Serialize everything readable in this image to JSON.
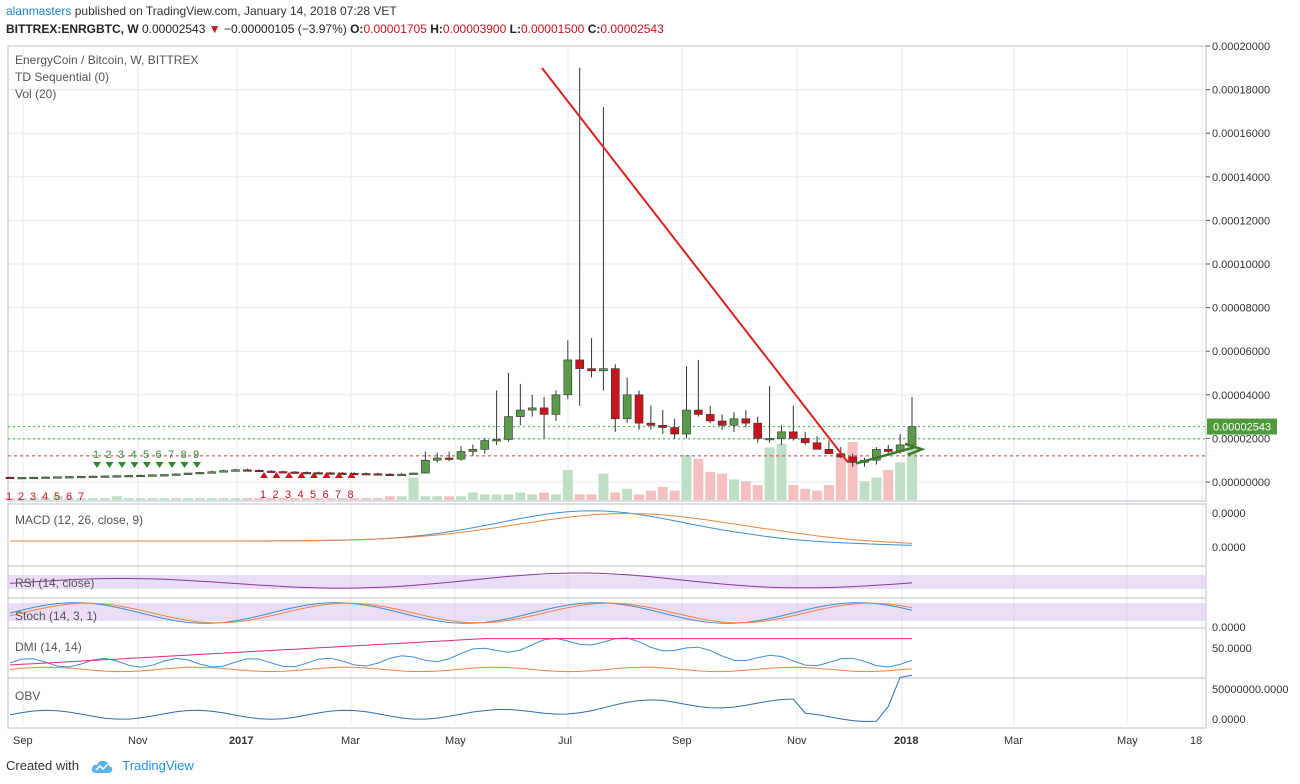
{
  "header": {
    "user": "alanmasters",
    "published": "published on TradingView.com, January 14, 2018 07:28 VET",
    "symbol": "BITTREX:ENRGBTC, W",
    "last": "0.00002543",
    "change": "−0.00000105 (−3.97%)",
    "o_label": "O:",
    "o": "0.00001705",
    "h_label": "H:",
    "h": "0.00003900",
    "l_label": "L:",
    "l": "0.00001500",
    "c_label": "C:",
    "c": "0.00002543"
  },
  "legend": {
    "title": "EnergyCoin / Bitcoin, W, BITTREX",
    "td": "TD Sequential (0)",
    "vol": "Vol (20)"
  },
  "footer": {
    "created": "Created with",
    "brand": "TradingView"
  },
  "colors": {
    "up": "#5a9a4a",
    "down": "#c8141c",
    "trend": "#e0201e",
    "green_arrow": "#3d7a2a",
    "macd": "#3d8fd6",
    "signal": "#f0843c",
    "rsi": "#8a3a9a",
    "band": "#dcc6f0",
    "dmi_plus": "#3d8fd6",
    "dmi_minus": "#f0843c",
    "adx": "#e0287a",
    "obv": "#2a6fb0"
  },
  "chart_data": {
    "type": "candlestick",
    "title": "EnergyCoin / Bitcoin, W, BITTREX",
    "price_axis": {
      "ylim": [
        0,
        0.0002
      ],
      "ticks": [
        "0.00020000",
        "0.00018000",
        "0.00016000",
        "0.00014000",
        "0.00012000",
        "0.00010000",
        "0.00008000",
        "0.00006000",
        "0.00004000",
        "0.00002000",
        "0.00000000"
      ],
      "last_label": "0.00002543"
    },
    "x_axis": {
      "ticks": [
        "Sep",
        "Nov",
        "2017",
        "Mar",
        "May",
        "Jul",
        "Sep",
        "Nov",
        "2018",
        "Mar",
        "May",
        "18"
      ]
    },
    "candles": [
      [
        2.2e-06,
        2.4e-06,
        1.8e-06,
        2e-06
      ],
      [
        2e-06,
        2.3e-06,
        1.8e-06,
        2.1e-06
      ],
      [
        2.1e-06,
        2.4e-06,
        1.9e-06,
        2.2e-06
      ],
      [
        2.2e-06,
        2.5e-06,
        2e-06,
        2.3e-06
      ],
      [
        2.3e-06,
        2.6e-06,
        2.1e-06,
        2.4e-06
      ],
      [
        2.4e-06,
        2.7e-06,
        2.2e-06,
        2.5e-06
      ],
      [
        2.5e-06,
        2.8e-06,
        2.3e-06,
        2.6e-06
      ],
      [
        2.6e-06,
        2.9e-06,
        2.4e-06,
        2.7e-06
      ],
      [
        2.7e-06,
        3e-06,
        2.5e-06,
        2.8e-06
      ],
      [
        2.8e-06,
        3.1e-06,
        2.6e-06,
        2.9e-06
      ],
      [
        2.9e-06,
        3.2e-06,
        2.7e-06,
        3e-06
      ],
      [
        3e-06,
        3.4e-06,
        2.8e-06,
        3.1e-06
      ],
      [
        3.1e-06,
        3.5e-06,
        2.9e-06,
        3.3e-06
      ],
      [
        3.3e-06,
        3.6e-06,
        3.1e-06,
        3.4e-06
      ],
      [
        3.4e-06,
        4e-06,
        3.2e-06,
        3.7e-06
      ],
      [
        3.7e-06,
        4.3e-06,
        3.3e-06,
        4.1e-06
      ],
      [
        4.1e-06,
        4.6e-06,
        3.7e-06,
        4.4e-06
      ],
      [
        4.4e-06,
        5.2e-06,
        4e-06,
        4.7e-06
      ],
      [
        4.7e-06,
        5.6e-06,
        4.4e-06,
        5.2e-06
      ],
      [
        5.2e-06,
        6e-06,
        4.8e-06,
        5.6e-06
      ],
      [
        5.6e-06,
        6.2e-06,
        5e-06,
        5.4e-06
      ],
      [
        5.4e-06,
        5.8e-06,
        4.8e-06,
        5e-06
      ],
      [
        5e-06,
        5.4e-06,
        4.5e-06,
        4.8e-06
      ],
      [
        4.8e-06,
        5.2e-06,
        4.3e-06,
        4.6e-06
      ],
      [
        4.6e-06,
        5e-06,
        4.1e-06,
        4.4e-06
      ],
      [
        4.4e-06,
        4.9e-06,
        4e-06,
        4.3e-06
      ],
      [
        4.3e-06,
        4.8e-06,
        3.9e-06,
        4.2e-06
      ],
      [
        4.2e-06,
        4.7e-06,
        3.8e-06,
        4.1e-06
      ],
      [
        4.1e-06,
        4.6e-06,
        3.7e-06,
        4e-06
      ],
      [
        4e-06,
        4.5e-06,
        3.6e-06,
        3.9e-06
      ],
      [
        3.9e-06,
        4.4e-06,
        3.5e-06,
        3.8e-06
      ],
      [
        3.8e-06,
        4.2e-06,
        3.4e-06,
        3.6e-06
      ],
      [
        3.6e-06,
        4e-06,
        3.4e-06,
        3.5e-06
      ],
      [
        3.5e-06,
        4e-06,
        3.3e-06,
        3.6e-06
      ],
      [
        3.6e-06,
        4.3e-06,
        3.4e-06,
        4.1e-06
      ],
      [
        4.1e-06,
        1.4e-05,
        3.9e-06,
        1e-05
      ],
      [
        1e-05,
        1.35e-05,
        9e-06,
        1.1e-05
      ],
      [
        1.1e-05,
        1.4e-05,
        9.5e-06,
        1.05e-05
      ],
      [
        1.05e-05,
        1.65e-05,
        9.8e-06,
        1.4e-05
      ],
      [
        1.4e-05,
        1.72e-05,
        1.2e-05,
        1.5e-05
      ],
      [
        1.5e-05,
        2e-05,
        1.3e-05,
        1.9e-05
      ],
      [
        1.9e-05,
        4.2e-05,
        1.7e-05,
        1.95e-05
      ],
      [
        1.95e-05,
        5e-05,
        1.85e-05,
        3e-05
      ],
      [
        3e-05,
        4.5e-05,
        2.6e-05,
        3.3e-05
      ],
      [
        3.3e-05,
        4e-05,
        3e-05,
        3.4e-05
      ],
      [
        3.4e-05,
        3.9e-05,
        2e-05,
        3.1e-05
      ],
      [
        3.1e-05,
        4.2e-05,
        2.8e-05,
        4e-05
      ],
      [
        4e-05,
        6.5e-05,
        3.8e-05,
        5.6e-05
      ],
      [
        5.6e-05,
        0.00019,
        3.5e-05,
        5.2e-05
      ],
      [
        5.2e-05,
        6.6e-05,
        4.8e-05,
        5.1e-05
      ],
      [
        5.1e-05,
        0.000172,
        4.2e-05,
        5.2e-05
      ],
      [
        5.2e-05,
        5.4e-05,
        2.3e-05,
        2.9e-05
      ],
      [
        2.9e-05,
        4.8e-05,
        2.7e-05,
        4e-05
      ],
      [
        4e-05,
        4.2e-05,
        2.4e-05,
        2.7e-05
      ],
      [
        2.7e-05,
        3.5e-05,
        2.4e-05,
        2.6e-05
      ],
      [
        2.6e-05,
        3.3e-05,
        2.2e-05,
        2.5e-05
      ],
      [
        2.5e-05,
        2.9e-05,
        2e-05,
        2.2e-05
      ],
      [
        2.2e-05,
        5.3e-05,
        2e-05,
        3.3e-05
      ],
      [
        3.3e-05,
        5.6e-05,
        3e-05,
        3.1e-05
      ],
      [
        3.1e-05,
        3.5e-05,
        2.7e-05,
        2.8e-05
      ],
      [
        2.8e-05,
        3.1e-05,
        2.4e-05,
        2.6e-05
      ],
      [
        2.6e-05,
        3.2e-05,
        2.3e-05,
        2.9e-05
      ],
      [
        2.9e-05,
        3.3e-05,
        2.5e-05,
        2.7e-05
      ],
      [
        2.7e-05,
        3e-05,
        1.8e-05,
        2e-05
      ],
      [
        2e-05,
        4.4e-05,
        1.8e-05,
        2e-05
      ],
      [
        2e-05,
        2.6e-05,
        1.7e-05,
        2.3e-05
      ],
      [
        2.3e-05,
        3.5e-05,
        1.9e-05,
        2e-05
      ],
      [
        2e-05,
        2.3e-05,
        1.7e-05,
        1.8e-05
      ],
      [
        1.8e-05,
        2.1e-05,
        1.5e-05,
        1.5e-05
      ],
      [
        1.5e-05,
        1.9e-05,
        1.3e-05,
        1.3e-05
      ],
      [
        1.3e-05,
        1.6e-05,
        1.1e-05,
        1.15e-05
      ],
      [
        1.15e-05,
        1.3e-05,
        7e-06,
        9e-06
      ],
      [
        9e-06,
        1.1e-05,
        7e-06,
        1e-05
      ],
      [
        1e-05,
        1.6e-05,
        8e-06,
        1.5e-05
      ],
      [
        1.5e-05,
        1.7e-05,
        1.2e-05,
        1.4e-05
      ],
      [
        1.4e-05,
        2.2e-05,
        1.3e-05,
        1.7e-05
      ],
      [
        1.7e-05,
        3.9e-05,
        1.5e-05,
        2.54e-05
      ]
    ],
    "volume": [
      1,
      1,
      1,
      1,
      2,
      1,
      1,
      1,
      1,
      2,
      1,
      1,
      1,
      1,
      1,
      1,
      1,
      1,
      1,
      1,
      1,
      1,
      1,
      1,
      1,
      1,
      1,
      1,
      1,
      1,
      1,
      1,
      2,
      2,
      12,
      2,
      2,
      2,
      2,
      4,
      3,
      3,
      3,
      4,
      3,
      4,
      3,
      16,
      3,
      3,
      14,
      4,
      6,
      3,
      5,
      7,
      5,
      24,
      22,
      15,
      14,
      11,
      10,
      8,
      28,
      30,
      8,
      6,
      5,
      8,
      24,
      31,
      10,
      12,
      16,
      20,
      30
    ],
    "td_sell_counts": [
      "1",
      "2",
      "3",
      "4",
      "5",
      "6",
      "7"
    ],
    "indicators": {
      "macd": {
        "label": "MACD (12, 26, close, 9)",
        "ticks": [
          "0.0000",
          "0.0000"
        ]
      },
      "rsi": {
        "label": "RSI (14, close)"
      },
      "stoch": {
        "label": "Stoch (14, 3, 1)",
        "tick": "0.0000"
      },
      "dmi": {
        "label": "DMI (14, 14)",
        "tick": "50.0000"
      },
      "obv": {
        "label": "OBV",
        "ticks": [
          "50000000.0000",
          "0.0000"
        ]
      }
    }
  }
}
